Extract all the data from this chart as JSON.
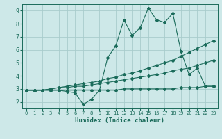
{
  "xlabel": "Humidex (Indice chaleur)",
  "ylabel": "",
  "background_color": "#cde8e8",
  "grid_color": "#a8cccc",
  "line_color": "#1a6b5a",
  "xlim": [
    -0.5,
    23.5
  ],
  "ylim": [
    1.5,
    9.5
  ],
  "xticks": [
    0,
    1,
    2,
    3,
    4,
    5,
    6,
    7,
    8,
    9,
    10,
    11,
    12,
    13,
    14,
    15,
    16,
    17,
    18,
    19,
    20,
    21,
    22,
    23
  ],
  "yticks": [
    2,
    3,
    4,
    5,
    6,
    7,
    8,
    9
  ],
  "series": [
    [
      2.9,
      2.9,
      2.9,
      2.9,
      2.9,
      2.8,
      2.7,
      1.8,
      2.2,
      2.9,
      5.4,
      6.3,
      8.3,
      7.1,
      7.7,
      9.2,
      8.3,
      8.1,
      8.8,
      5.9,
      4.1,
      4.6,
      3.2,
      3.2
    ],
    [
      2.9,
      2.9,
      2.9,
      3.0,
      3.1,
      3.2,
      3.3,
      3.4,
      3.5,
      3.6,
      3.8,
      3.9,
      4.1,
      4.2,
      4.4,
      4.6,
      4.8,
      5.0,
      5.2,
      5.5,
      5.8,
      6.1,
      6.4,
      6.7
    ],
    [
      2.9,
      2.9,
      2.9,
      3.0,
      3.1,
      3.1,
      3.2,
      3.2,
      3.3,
      3.4,
      3.5,
      3.6,
      3.7,
      3.8,
      3.9,
      4.0,
      4.1,
      4.2,
      4.4,
      4.5,
      4.6,
      4.8,
      5.0,
      5.2
    ],
    [
      2.9,
      2.9,
      2.9,
      2.9,
      2.9,
      2.9,
      2.9,
      2.9,
      2.9,
      2.9,
      2.9,
      2.9,
      3.0,
      3.0,
      3.0,
      3.0,
      3.0,
      3.0,
      3.0,
      3.1,
      3.1,
      3.1,
      3.2,
      3.2
    ]
  ]
}
